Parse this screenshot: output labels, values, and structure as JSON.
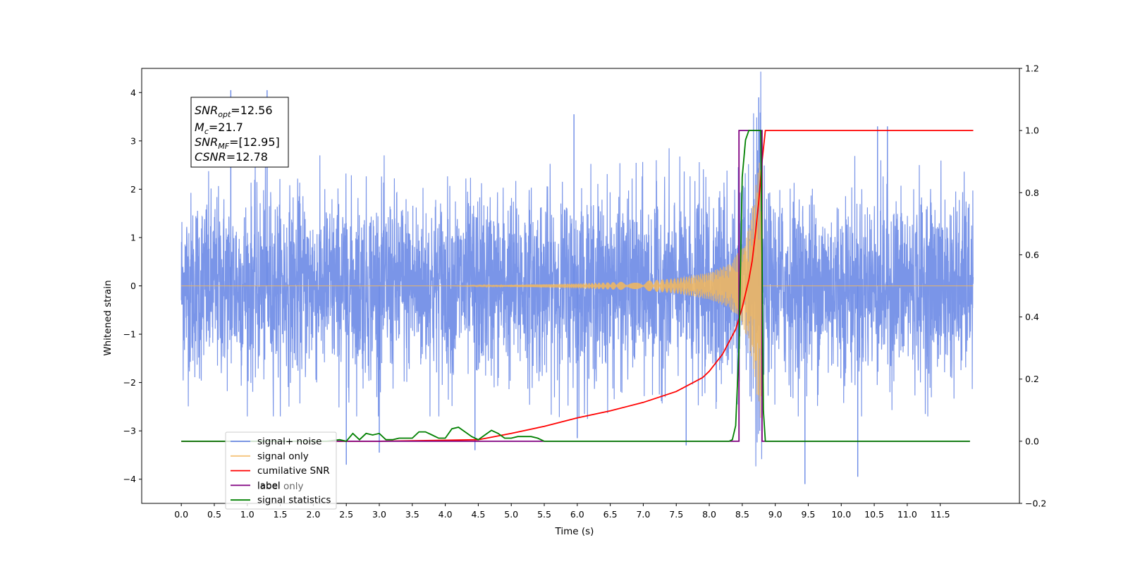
{
  "chart_data": {
    "type": "line",
    "xlabel": "Time (s)",
    "ylabel": "Whitened strain",
    "xlim": [
      -0.6,
      12.7
    ],
    "ylim_left": [
      -4.5,
      4.5
    ],
    "ylim_right": [
      -0.2,
      1.2
    ],
    "x_ticks": [
      "0.0",
      "0.5",
      "1.0",
      "1.5",
      "2.0",
      "2.5",
      "3.0",
      "3.5",
      "4.0",
      "4.5",
      "5.0",
      "5.5",
      "6.0",
      "6.5",
      "7.0",
      "7.5",
      "8.0",
      "8.5",
      "9.0",
      "9.5",
      "10.0",
      "10.5",
      "11.0",
      "11.5"
    ],
    "y_ticks_left": [
      "4",
      "3",
      "2",
      "1",
      "0",
      "−1",
      "−2",
      "−3",
      "−4"
    ],
    "y_ticks_right": [
      "1.2",
      "1.0",
      "0.8",
      "0.6",
      "0.4",
      "0.2",
      "0.0",
      "−0.2"
    ],
    "grid": false,
    "legend_position": "lower-left",
    "annotation": {
      "snr_opt_label": "SNR",
      "snr_opt_sub": "opt",
      "snr_opt_value": "=12.56",
      "mc_label": "M",
      "mc_sub": "c",
      "mc_value": "=21.7",
      "snr_mf_label": "SNR",
      "snr_mf_sub": "MF",
      "snr_mf_value": "=[12.95]",
      "csnr_label": "CSNR",
      "csnr_value": "=12.78"
    },
    "series": [
      {
        "name": "signal+ noise",
        "axis": "left",
        "color": "#6b8ae6",
        "description_values": "noise band spanning approximately -2.4 to 2.4 with spikes up to 4.1 and down to -4.1 over 0.0–12.0 s",
        "outliers": [
          [
            0.75,
            4.05
          ],
          [
            1.3,
            4.05
          ],
          [
            8.75,
            3.9
          ],
          [
            9.45,
            -4.1
          ],
          [
            10.25,
            -3.95
          ],
          [
            2.5,
            -3.7
          ],
          [
            3.0,
            -3.45
          ],
          [
            4.45,
            -3.4
          ],
          [
            5.95,
            3.55
          ],
          [
            7.65,
            -3.3
          ],
          [
            10.55,
            3.3
          ],
          [
            10.7,
            3.3
          ],
          [
            6.0,
            -3.15
          ]
        ]
      },
      {
        "name": "signal only",
        "axis": "left",
        "color": "#f5b85a",
        "chirp_envelope": [
          [
            4.0,
            0.0
          ],
          [
            5.0,
            0.02
          ],
          [
            6.0,
            0.05
          ],
          [
            7.0,
            0.1
          ],
          [
            7.5,
            0.16
          ],
          [
            8.0,
            0.28
          ],
          [
            8.3,
            0.45
          ],
          [
            8.5,
            0.8
          ],
          [
            8.6,
            1.2
          ],
          [
            8.7,
            2.0
          ],
          [
            8.77,
            2.8
          ],
          [
            8.8,
            0.0
          ],
          [
            12.0,
            0.0
          ]
        ]
      },
      {
        "name": "cumilative SNR",
        "axis": "right",
        "color": "#ff0000",
        "x": [
          0.0,
          3.0,
          4.5,
          5.0,
          5.5,
          6.0,
          6.5,
          7.0,
          7.5,
          7.9,
          8.0,
          8.2,
          8.4,
          8.5,
          8.6,
          8.65,
          8.7,
          8.75,
          8.8,
          8.85,
          12.0
        ],
        "y": [
          0.0,
          0.0,
          0.005,
          0.025,
          0.048,
          0.075,
          0.098,
          0.125,
          0.16,
          0.205,
          0.225,
          0.28,
          0.36,
          0.43,
          0.52,
          0.58,
          0.67,
          0.77,
          0.9,
          1.0,
          1.0
        ]
      },
      {
        "name": "label",
        "axis": "right",
        "color": "#800080",
        "x": [
          0.0,
          8.45,
          8.45,
          8.8,
          8.8,
          11.95
        ],
        "y": [
          0.0,
          0.0,
          1.0,
          1.0,
          0.0,
          0.0
        ]
      },
      {
        "name": "signal statistics",
        "axis": "right",
        "color": "#008000",
        "x": [
          0.0,
          2.2,
          2.4,
          2.5,
          2.6,
          2.7,
          2.8,
          2.9,
          3.0,
          3.1,
          3.2,
          3.3,
          3.5,
          3.6,
          3.7,
          3.8,
          3.9,
          4.0,
          4.1,
          4.2,
          4.3,
          4.4,
          4.5,
          4.6,
          4.7,
          4.8,
          4.9,
          5.0,
          5.1,
          5.2,
          5.3,
          5.4,
          5.5,
          8.2,
          8.3,
          8.35,
          8.4,
          8.45,
          8.5,
          8.55,
          8.6,
          8.65,
          8.7,
          8.75,
          8.78,
          8.8,
          8.82,
          8.85,
          8.9,
          11.95
        ],
        "y": [
          0.0,
          0.0,
          0.005,
          0.0,
          0.025,
          0.005,
          0.025,
          0.02,
          0.025,
          0.005,
          0.005,
          0.01,
          0.01,
          0.03,
          0.03,
          0.02,
          0.01,
          0.01,
          0.04,
          0.045,
          0.03,
          0.015,
          0.005,
          0.02,
          0.035,
          0.025,
          0.01,
          0.01,
          0.015,
          0.015,
          0.015,
          0.01,
          0.0,
          0.0,
          0.0,
          0.005,
          0.05,
          0.3,
          0.85,
          0.97,
          1.0,
          1.0,
          1.0,
          1.0,
          1.0,
          0.6,
          0.1,
          0.0,
          0.0,
          0.0
        ]
      }
    ],
    "legend_extra": "label only"
  }
}
